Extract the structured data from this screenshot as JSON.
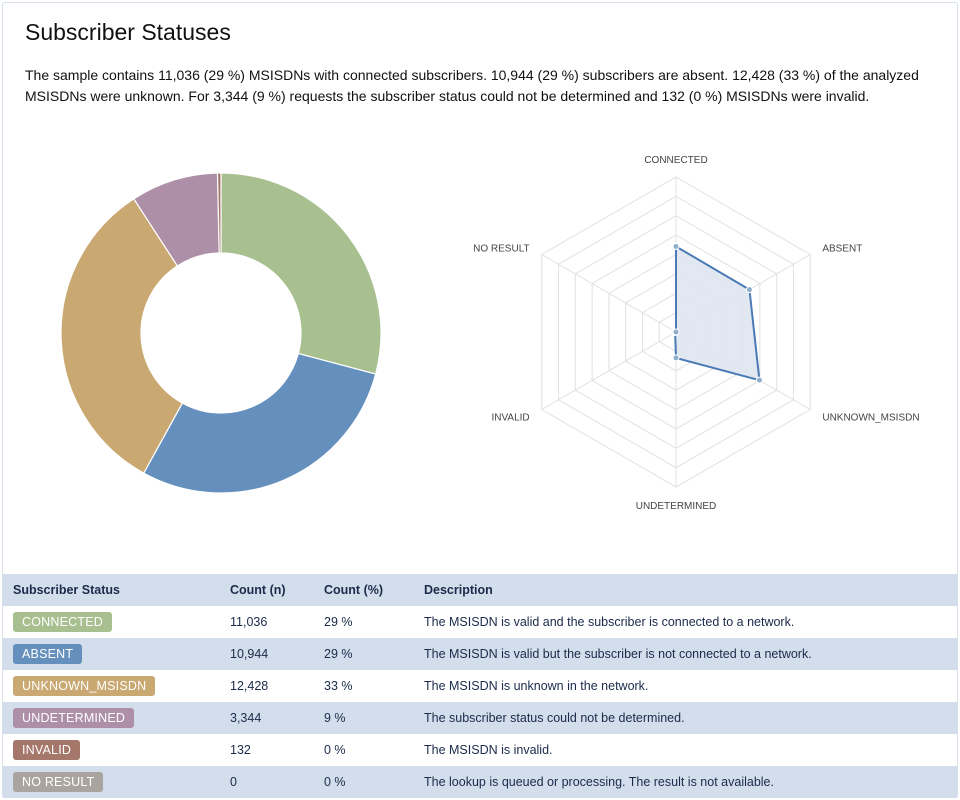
{
  "title": "Subscriber Statuses",
  "summary": "The sample contains 11,036 (29 %) MSISDNs with connected subscribers. 10,944 (29 %) subscribers are absent. 12,428 (33 %) of the analyzed MSISDNs were unknown. For 3,344 (9 %) requests the subscriber status could not be determined and 132 (0 %) MSISDNs were invalid.",
  "table": {
    "headers": [
      "Subscriber Status",
      "Count (n)",
      "Count (%)",
      "Description"
    ],
    "rows": [
      {
        "status": "CONNECTED",
        "count": "11,036",
        "pct": "29 %",
        "desc": "The MSISDN is valid and the subscriber is connected to a network.",
        "color": "#a8bf8f"
      },
      {
        "status": "ABSENT",
        "count": "10,944",
        "pct": "29 %",
        "desc": "The MSISDN is valid but the subscriber is not connected to a network.",
        "color": "#6590bd"
      },
      {
        "status": "UNKNOWN_MSISDN",
        "count": "12,428",
        "pct": "33 %",
        "desc": "The MSISDN is unknown in the network.",
        "color": "#c9a872"
      },
      {
        "status": "UNDETERMINED",
        "count": "3,344",
        "pct": "9 %",
        "desc": "The subscriber status could not be determined.",
        "color": "#ad8fa8"
      },
      {
        "status": "INVALID",
        "count": "132",
        "pct": "0 %",
        "desc": "The MSISDN is invalid.",
        "color": "#a5766a"
      },
      {
        "status": "NO RESULT",
        "count": "0",
        "pct": "0 %",
        "desc": "The lookup is queued or processing. The result is not available.",
        "color": "#aaa49f"
      }
    ]
  },
  "chart_data": [
    {
      "type": "pie",
      "variant": "donut",
      "categories": [
        "CONNECTED",
        "ABSENT",
        "UNKNOWN_MSISDN",
        "UNDETERMINED",
        "INVALID",
        "NO RESULT"
      ],
      "values": [
        11036,
        10944,
        12428,
        3344,
        132,
        0
      ],
      "colors": [
        "#a8bf8f",
        "#6590bd",
        "#c9a872",
        "#ad8fa8",
        "#a5766a",
        "#aaa49f"
      ]
    },
    {
      "type": "radar",
      "categories": [
        "CONNECTED",
        "ABSENT",
        "UNKNOWN_MSISDN",
        "UNDETERMINED",
        "INVALID",
        "NO RESULT"
      ],
      "values": [
        11036,
        10944,
        12428,
        3344,
        132,
        0
      ],
      "rmax": 20000,
      "grid": true,
      "line_color": "#4a7ab5",
      "fill_color": "#dfe6f0"
    }
  ]
}
